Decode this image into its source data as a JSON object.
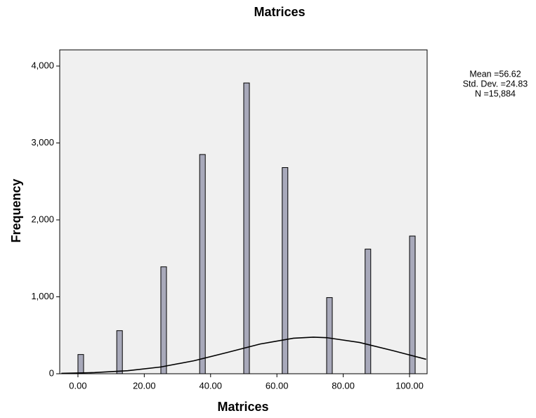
{
  "chart_data": {
    "type": "histogram",
    "title": "Matrices",
    "x_label": "Matrices",
    "y_label": "Frequency",
    "bins": [
      0,
      1.7,
      11.7,
      13.4,
      25,
      26.7,
      36.7,
      38.4,
      50,
      51.7,
      61.6,
      63.3,
      75,
      76.7,
      86.6,
      88.3,
      100,
      101.7
    ],
    "counts": [
      250,
      0,
      560,
      0,
      1390,
      0,
      2850,
      0,
      3780,
      0,
      2680,
      0,
      990,
      0,
      1620,
      0,
      1790
    ],
    "color": "#a8a9ba",
    "curve": {
      "x": [
        -5,
        5,
        15,
        25,
        35,
        45,
        55,
        65,
        71,
        75,
        85,
        95,
        105
      ],
      "values": [
        5,
        15,
        39,
        88,
        169,
        276,
        387,
        462,
        475,
        469,
        406,
        300,
        188
      ]
    },
    "stats": [
      "Mean =56.62",
      "Std. Dev. =24.83",
      "N =15,884"
    ],
    "xlim": [
      -5.5,
      105.3
    ],
    "ylim": [
      0,
      4210
    ],
    "xticks": [
      {
        "value": 0,
        "label": "0.00"
      },
      {
        "value": 20,
        "label": "20.00"
      },
      {
        "value": 40,
        "label": "40.00"
      },
      {
        "value": 60,
        "label": "60.00"
      },
      {
        "value": 80,
        "label": "80.00"
      },
      {
        "value": 100,
        "label": "100.00"
      }
    ],
    "yticks": [
      0,
      {
        "value": 1000,
        "label": "1,000"
      },
      {
        "value": 2000,
        "label": "2,000"
      },
      {
        "value": 3000,
        "label": "3,000"
      },
      {
        "value": 4000,
        "label": "4,000"
      }
    ]
  }
}
